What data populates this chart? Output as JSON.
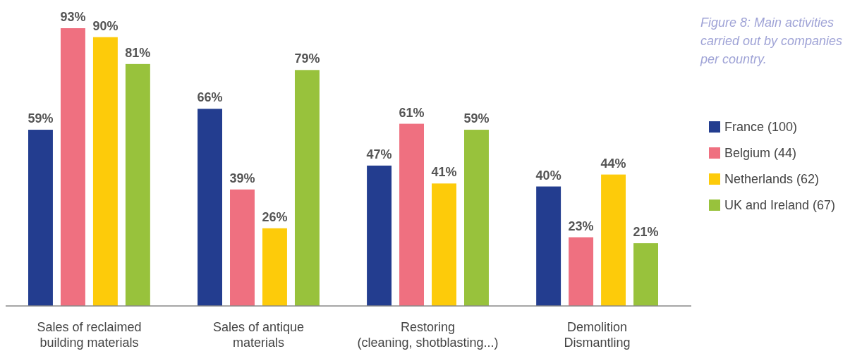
{
  "chart_data": {
    "type": "bar",
    "title": "Figure 8: Main activities carried out by companies per country.",
    "categories": [
      "Sales of reclaimed\nbuilding materials",
      "Sales of antique\nmaterials",
      "Restoring\n(cleaning, shotblasting...)",
      "Demolition\nDismantling"
    ],
    "series": [
      {
        "name": "France (100)",
        "color": "#233d8f",
        "values": [
          59,
          66,
          47,
          40
        ],
        "value_labels": [
          "59%",
          "66%",
          "47%",
          "40%"
        ]
      },
      {
        "name": "Belgium (44)",
        "color": "#ef7080",
        "values": [
          93,
          39,
          61,
          23
        ],
        "value_labels": [
          "93%",
          "39%",
          "61%",
          "23%"
        ]
      },
      {
        "name": "Netherlands (62)",
        "color": "#fdcb0a",
        "values": [
          90,
          26,
          41,
          44
        ],
        "value_labels": [
          "90%",
          "26%",
          "41%",
          "44%"
        ]
      },
      {
        "name": "UK and Ireland (67)",
        "color": "#98c23c",
        "values": [
          81,
          79,
          59,
          21
        ],
        "value_labels": [
          "81%",
          "79%",
          "59%",
          "21%"
        ]
      }
    ],
    "legend": "right"
  }
}
